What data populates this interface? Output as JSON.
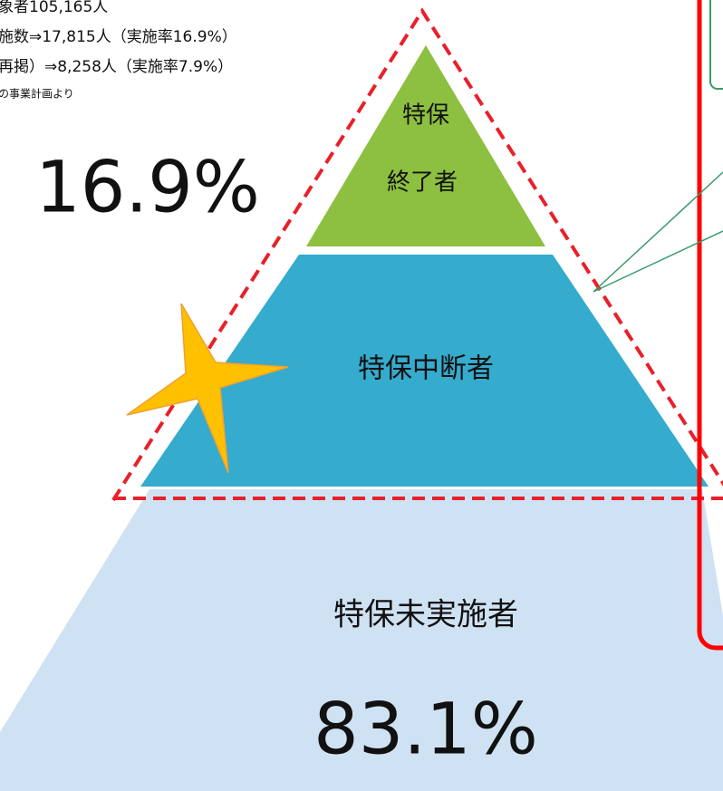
{
  "notes": [
    "象者105,165人",
    "施数⇒17,815人（実施率16.9%）",
    "再掲）⇒8,258人（実施率7.9%）",
    "の事業計画より"
  ],
  "pyramid": {
    "top": [
      "特保",
      "終了者"
    ],
    "middle": "特保中断者",
    "bottom": "特保未実施者"
  },
  "percent_upper": "16.9%",
  "percent_lower": "83.1%"
}
